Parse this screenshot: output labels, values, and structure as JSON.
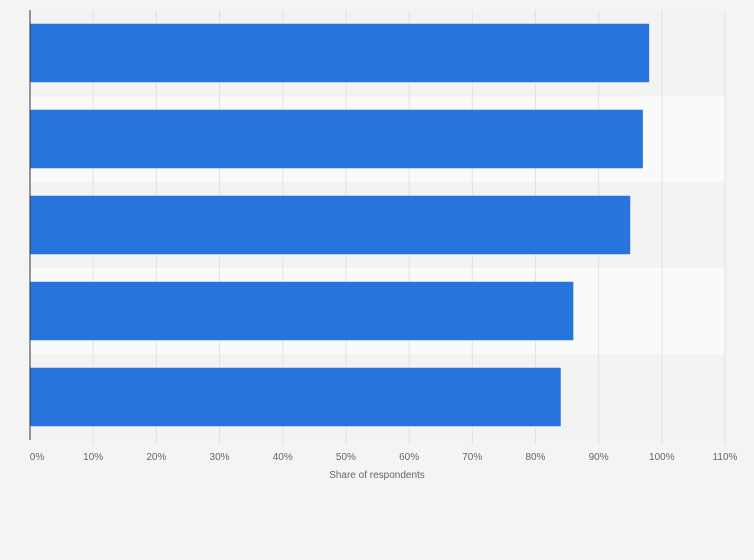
{
  "chart_data": {
    "type": "bar",
    "orientation": "horizontal",
    "categories": [
      "",
      "",
      "",
      "",
      ""
    ],
    "values": [
      98,
      97,
      95,
      86,
      84
    ],
    "xlabel": "Share of respondents",
    "ylabel": "",
    "xlim": [
      0,
      110
    ],
    "x_ticks": [
      "0%",
      "10%",
      "20%",
      "30%",
      "40%",
      "50%",
      "60%",
      "70%",
      "80%",
      "90%",
      "100%",
      "110%"
    ],
    "grid": true,
    "legend": "none",
    "bar_color": "#2775dc",
    "band_colors": [
      "#f3f3f3",
      "#fafafa"
    ]
  }
}
